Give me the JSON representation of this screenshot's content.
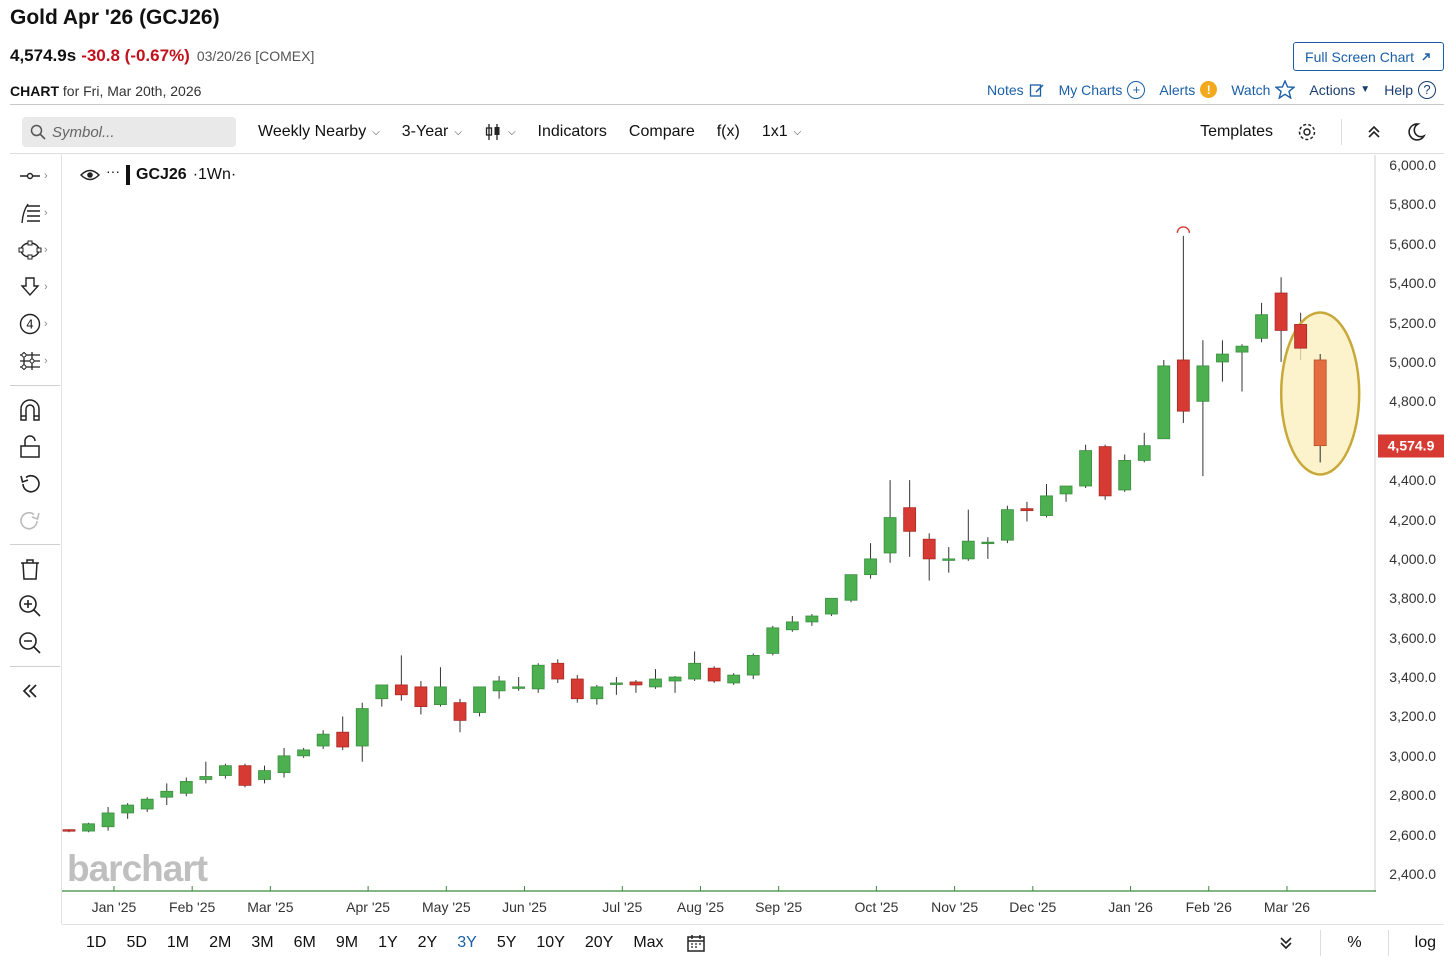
{
  "header": {
    "title": "Gold Apr '26 (GCJ26)",
    "last": "4,574.9s",
    "change": "-30.8 (-0.67%)",
    "meta": "03/20/26 [COMEX]",
    "fullscreen_label": "Full Screen Chart",
    "chart_label": "CHART",
    "chart_for": "for Fri, Mar 20th, 2026"
  },
  "nav": {
    "notes": "Notes",
    "my_charts": "My Charts",
    "alerts": "Alerts",
    "watch": "Watch",
    "actions": "Actions",
    "help": "Help"
  },
  "toolbar": {
    "search_placeholder": "Symbol...",
    "period": "Weekly Nearby",
    "range": "3-Year",
    "indicators": "Indicators",
    "compare": "Compare",
    "fx": "f(x)",
    "layout": "1x1",
    "templates": "Templates"
  },
  "legend": {
    "symbol": "GCJ26",
    "interval": "·1Wn·"
  },
  "watermark": "barchart",
  "bottom": {
    "ranges": [
      "1D",
      "5D",
      "1M",
      "2M",
      "3M",
      "6M",
      "9M",
      "1Y",
      "2Y",
      "3Y",
      "5Y",
      "10Y",
      "20Y",
      "Max"
    ],
    "active_range": "3Y",
    "percent": "%",
    "log": "log"
  },
  "colors": {
    "up": "#4caf50",
    "down": "#d63a32",
    "highlight_fill": "#fbefbb",
    "highlight_stroke": "#c9a83a",
    "last_price_bg": "#d63a32"
  },
  "chart_data": {
    "type": "candlestick",
    "title": "GCJ26 ·1Wn·",
    "ylim": [
      2300,
      6050
    ],
    "y_ticks": [
      "6,000.0",
      "5,800.0",
      "5,600.0",
      "5,400.0",
      "5,200.0",
      "5,000.0",
      "4,800.0",
      "4,600.0",
      "4,400.0",
      "4,200.0",
      "4,000.0",
      "3,800.0",
      "3,600.0",
      "3,400.0",
      "3,200.0",
      "3,000.0",
      "2,800.0",
      "2,600.0",
      "2,400.0"
    ],
    "x_labels": [
      "Jan '25",
      "Feb '25",
      "Mar '25",
      "Apr '25",
      "May '25",
      "Jun '25",
      "Jul '25",
      "Aug '25",
      "Sep '25",
      "Oct '25",
      "Nov '25",
      "Dec '25",
      "Jan '26",
      "Feb '26",
      "Mar '26"
    ],
    "x_label_week_index": [
      2.3,
      6.3,
      10.3,
      15.3,
      19.3,
      23.3,
      28.3,
      32.3,
      36.3,
      41.3,
      45.3,
      49.3,
      54.3,
      58.3,
      62.3
    ],
    "last_price": 4574.9,
    "last_price_label": "4,574.9",
    "ohlc": [
      {
        "o": 2625,
        "h": 2628,
        "l": 2612,
        "c": 2618
      },
      {
        "o": 2618,
        "h": 2660,
        "l": 2612,
        "c": 2655
      },
      {
        "o": 2640,
        "h": 2740,
        "l": 2620,
        "c": 2710
      },
      {
        "o": 2710,
        "h": 2760,
        "l": 2680,
        "c": 2750
      },
      {
        "o": 2730,
        "h": 2790,
        "l": 2715,
        "c": 2780
      },
      {
        "o": 2790,
        "h": 2860,
        "l": 2750,
        "c": 2820
      },
      {
        "o": 2810,
        "h": 2890,
        "l": 2795,
        "c": 2870
      },
      {
        "o": 2880,
        "h": 2970,
        "l": 2860,
        "c": 2895
      },
      {
        "o": 2900,
        "h": 2960,
        "l": 2885,
        "c": 2950
      },
      {
        "o": 2950,
        "h": 2960,
        "l": 2840,
        "c": 2850
      },
      {
        "o": 2880,
        "h": 2950,
        "l": 2860,
        "c": 2925
      },
      {
        "o": 2915,
        "h": 3040,
        "l": 2890,
        "c": 3000
      },
      {
        "o": 3000,
        "h": 3040,
        "l": 2990,
        "c": 3030
      },
      {
        "o": 3050,
        "h": 3130,
        "l": 3035,
        "c": 3110
      },
      {
        "o": 3120,
        "h": 3200,
        "l": 3030,
        "c": 3045
      },
      {
        "o": 3050,
        "h": 3270,
        "l": 2970,
        "c": 3240
      },
      {
        "o": 3290,
        "h": 3360,
        "l": 3250,
        "c": 3360
      },
      {
        "o": 3360,
        "h": 3510,
        "l": 3280,
        "c": 3310
      },
      {
        "o": 3350,
        "h": 3380,
        "l": 3210,
        "c": 3250
      },
      {
        "o": 3260,
        "h": 3450,
        "l": 3250,
        "c": 3350
      },
      {
        "o": 3270,
        "h": 3290,
        "l": 3120,
        "c": 3180
      },
      {
        "o": 3220,
        "h": 3340,
        "l": 3200,
        "c": 3350
      },
      {
        "o": 3330,
        "h": 3405,
        "l": 3290,
        "c": 3380
      },
      {
        "o": 3345,
        "h": 3400,
        "l": 3330,
        "c": 3350
      },
      {
        "o": 3340,
        "h": 3470,
        "l": 3320,
        "c": 3460
      },
      {
        "o": 3470,
        "h": 3490,
        "l": 3370,
        "c": 3390
      },
      {
        "o": 3390,
        "h": 3410,
        "l": 3270,
        "c": 3290
      },
      {
        "o": 3290,
        "h": 3360,
        "l": 3260,
        "c": 3350
      },
      {
        "o": 3365,
        "h": 3400,
        "l": 3310,
        "c": 3370
      },
      {
        "o": 3375,
        "h": 3385,
        "l": 3320,
        "c": 3360
      },
      {
        "o": 3350,
        "h": 3440,
        "l": 3340,
        "c": 3390
      },
      {
        "o": 3380,
        "h": 3405,
        "l": 3320,
        "c": 3400
      },
      {
        "o": 3390,
        "h": 3530,
        "l": 3380,
        "c": 3470
      },
      {
        "o": 3445,
        "h": 3455,
        "l": 3370,
        "c": 3380
      },
      {
        "o": 3370,
        "h": 3420,
        "l": 3360,
        "c": 3410
      },
      {
        "o": 3410,
        "h": 3520,
        "l": 3390,
        "c": 3510
      },
      {
        "o": 3520,
        "h": 3660,
        "l": 3510,
        "c": 3650
      },
      {
        "o": 3640,
        "h": 3710,
        "l": 3630,
        "c": 3680
      },
      {
        "o": 3680,
        "h": 3720,
        "l": 3660,
        "c": 3710
      },
      {
        "o": 3720,
        "h": 3800,
        "l": 3710,
        "c": 3800
      },
      {
        "o": 3790,
        "h": 3920,
        "l": 3780,
        "c": 3920
      },
      {
        "o": 3920,
        "h": 4080,
        "l": 3900,
        "c": 4000
      },
      {
        "o": 4030,
        "h": 4400,
        "l": 3980,
        "c": 4210
      },
      {
        "o": 4260,
        "h": 4400,
        "l": 4010,
        "c": 4140
      },
      {
        "o": 4100,
        "h": 4130,
        "l": 3890,
        "c": 4000
      },
      {
        "o": 3995,
        "h": 4060,
        "l": 3930,
        "c": 4000
      },
      {
        "o": 4000,
        "h": 4250,
        "l": 3990,
        "c": 4090
      },
      {
        "o": 4080,
        "h": 4110,
        "l": 4000,
        "c": 4085
      },
      {
        "o": 4095,
        "h": 4270,
        "l": 4080,
        "c": 4250
      },
      {
        "o": 4255,
        "h": 4290,
        "l": 4190,
        "c": 4245
      },
      {
        "o": 4220,
        "h": 4380,
        "l": 4210,
        "c": 4320
      },
      {
        "o": 4330,
        "h": 4370,
        "l": 4290,
        "c": 4370
      },
      {
        "o": 4370,
        "h": 4580,
        "l": 4360,
        "c": 4550
      },
      {
        "o": 4570,
        "h": 4580,
        "l": 4300,
        "c": 4320
      },
      {
        "o": 4350,
        "h": 4530,
        "l": 4340,
        "c": 4500
      },
      {
        "o": 4500,
        "h": 4640,
        "l": 4490,
        "c": 4575
      },
      {
        "o": 4610,
        "h": 5010,
        "l": 4610,
        "c": 4980
      },
      {
        "o": 5010,
        "h": 5640,
        "l": 4690,
        "c": 4750
      },
      {
        "o": 4800,
        "h": 5110,
        "l": 4420,
        "c": 4980
      },
      {
        "o": 5000,
        "h": 5110,
        "l": 4900,
        "c": 5040
      },
      {
        "o": 5050,
        "h": 5090,
        "l": 4850,
        "c": 5080
      },
      {
        "o": 5120,
        "h": 5300,
        "l": 5100,
        "c": 5240
      },
      {
        "o": 5350,
        "h": 5430,
        "l": 5000,
        "c": 5160
      },
      {
        "o": 5190,
        "h": 5250,
        "l": 5010,
        "c": 5070
      },
      {
        "o": 5010,
        "h": 5040,
        "l": 4490,
        "c": 4574.9
      }
    ]
  }
}
